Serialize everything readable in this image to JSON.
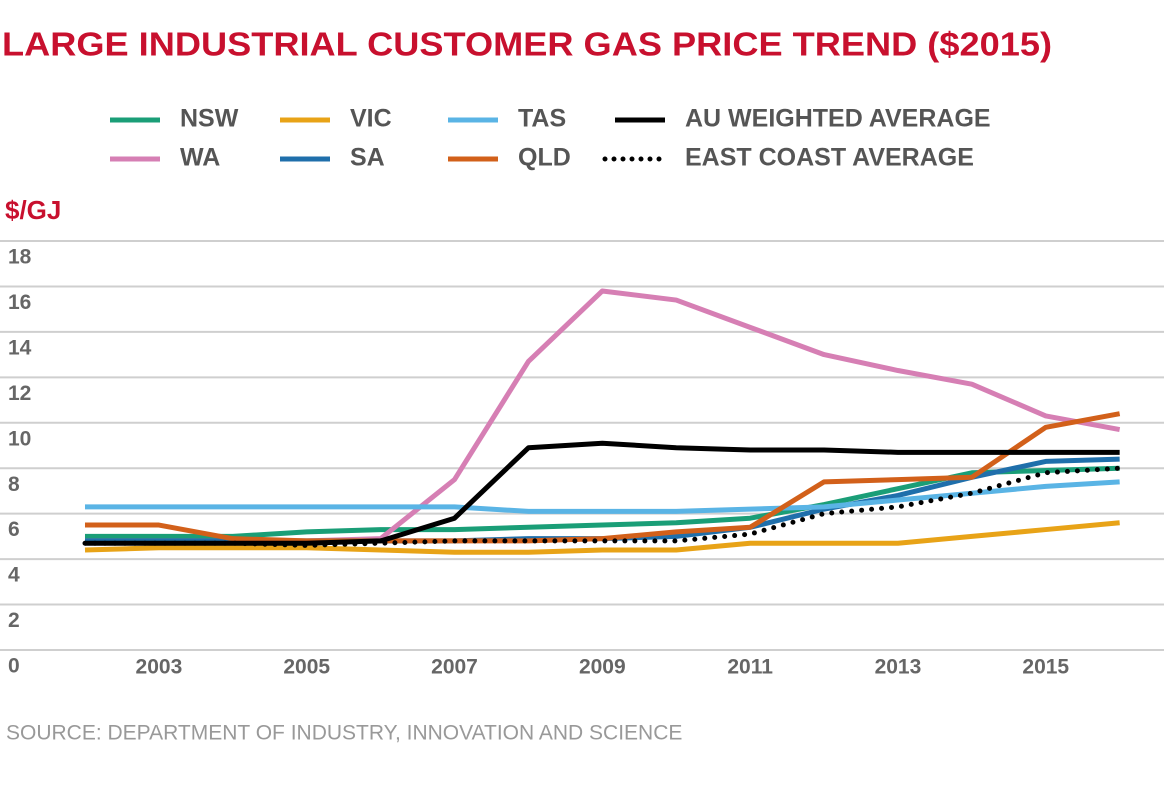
{
  "chart_data": {
    "type": "line",
    "title": "LARGE INDUSTRIAL CUSTOMER GAS PRICE TREND ($2015)",
    "y_label": "$/GJ",
    "source": "SOURCE: DEPARTMENT OF INDUSTRY, INNOVATION AND SCIENCE",
    "x": [
      2002,
      2003,
      2004,
      2005,
      2006,
      2007,
      2008,
      2009,
      2010,
      2011,
      2012,
      2013,
      2014,
      2015,
      2016
    ],
    "xlim": [
      2000.85,
      2016.6
    ],
    "xticks": [
      2003,
      2005,
      2007,
      2009,
      2011,
      2013,
      2015
    ],
    "ylim": [
      0,
      18
    ],
    "yticks": [
      0,
      2,
      4,
      6,
      8,
      10,
      12,
      14,
      16,
      18
    ],
    "grid": true,
    "series": [
      {
        "name": "NSW",
        "color": "#1a9e77",
        "values": [
          5.0,
          5.0,
          5.0,
          5.2,
          5.3,
          5.3,
          5.4,
          5.5,
          5.6,
          5.8,
          6.4,
          7.1,
          7.8,
          7.9,
          8.0
        ]
      },
      {
        "name": "WA",
        "color": "#d67fb4",
        "values": [
          4.8,
          4.8,
          4.8,
          4.8,
          4.9,
          7.5,
          12.7,
          15.8,
          15.4,
          14.2,
          13.0,
          12.3,
          11.7,
          10.3,
          9.7
        ]
      },
      {
        "name": "VIC",
        "color": "#e8a317",
        "values": [
          4.4,
          4.5,
          4.5,
          4.5,
          4.4,
          4.3,
          4.3,
          4.4,
          4.4,
          4.7,
          4.7,
          4.7,
          5.0,
          5.3,
          5.6
        ]
      },
      {
        "name": "SA",
        "color": "#1f6fab",
        "values": [
          4.8,
          4.8,
          4.8,
          4.8,
          4.8,
          4.8,
          4.9,
          4.9,
          5.0,
          5.4,
          6.2,
          6.8,
          7.6,
          8.3,
          8.4
        ]
      },
      {
        "name": "TAS",
        "color": "#5ab4e5",
        "values": [
          6.3,
          6.3,
          6.3,
          6.3,
          6.3,
          6.3,
          6.1,
          6.1,
          6.1,
          6.2,
          6.3,
          6.6,
          6.9,
          7.2,
          7.4
        ]
      },
      {
        "name": "QLD",
        "color": "#d2601a",
        "values": [
          5.5,
          5.5,
          4.9,
          4.8,
          4.8,
          4.8,
          4.8,
          4.9,
          5.2,
          5.4,
          7.4,
          7.5,
          7.6,
          9.8,
          10.4
        ]
      },
      {
        "name": "AU WEIGHTED AVERAGE",
        "color": "#000000",
        "values": [
          4.7,
          4.7,
          4.7,
          4.7,
          4.8,
          5.8,
          8.9,
          9.1,
          8.9,
          8.8,
          8.8,
          8.7,
          8.7,
          8.7,
          8.7
        ]
      },
      {
        "name": "EAST COAST AVERAGE",
        "color": "#000000",
        "style": "dotted",
        "values": [
          4.7,
          4.7,
          4.7,
          4.6,
          4.7,
          4.8,
          4.8,
          4.8,
          4.8,
          5.1,
          6.0,
          6.3,
          6.9,
          7.8,
          8.0
        ]
      }
    ]
  }
}
